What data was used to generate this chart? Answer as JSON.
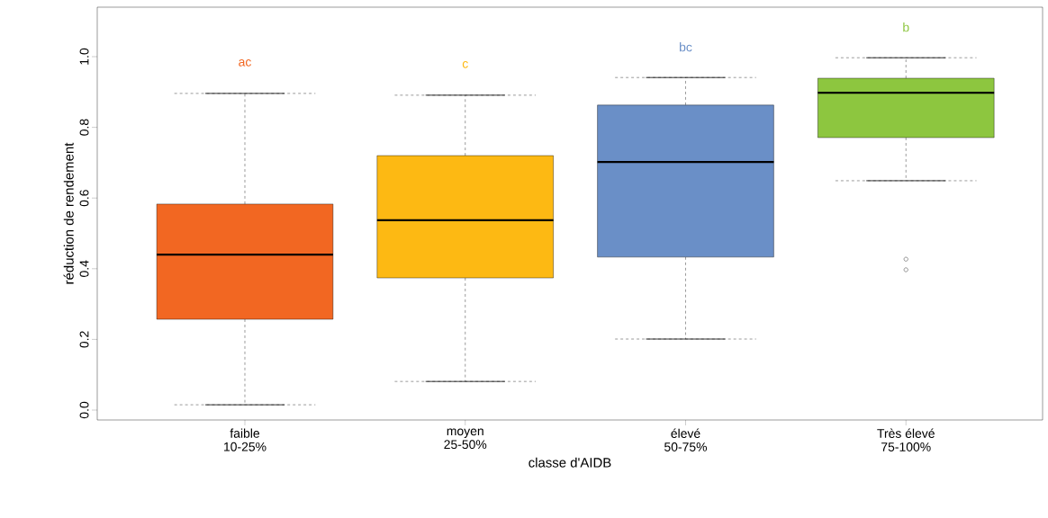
{
  "chart_data": {
    "type": "box",
    "xlabel": "classe d'AIDB",
    "ylabel": "réduction de rendement",
    "categories": [
      "faible\n10-25%",
      "moyen\n25-50%",
      "élevé\n50-75%",
      "Très élevé\n75-100%"
    ],
    "colors": [
      "#f26722",
      "#fdb913",
      "#6a8fc7",
      "#8dc63f"
    ],
    "boxes": [
      {
        "low": 0.015,
        "q1": 0.257,
        "median": 0.44,
        "q3": 0.583,
        "high": 0.896
      },
      {
        "low": 0.081,
        "q1": 0.374,
        "median": 0.537,
        "q3": 0.72,
        "high": 0.891
      },
      {
        "low": 0.201,
        "q1": 0.433,
        "median": 0.702,
        "q3": 0.863,
        "high": 0.941
      },
      {
        "low": 0.649,
        "q1": 0.771,
        "median": 0.898,
        "q3": 0.939,
        "high": 0.997,
        "outliers": [
          0.427,
          0.397
        ]
      }
    ],
    "ylim": [
      -0.028,
      1.14
    ],
    "yticks": [
      {
        "value": 0,
        "label": "0.0"
      },
      0.2,
      0.4,
      0.6,
      0.8,
      {
        "value": 1,
        "label": "1.0"
      }
    ],
    "annotations": [
      "ac",
      "c",
      "bc",
      "b"
    ],
    "grid": false
  }
}
